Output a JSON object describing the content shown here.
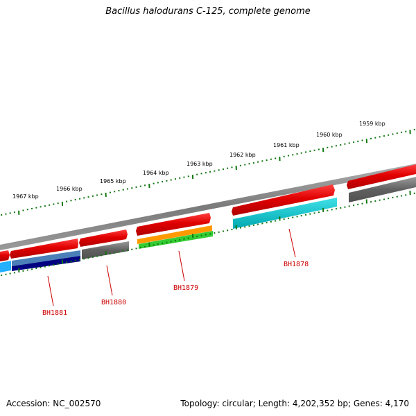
{
  "title": "Bacillus halodurans C-125, complete genome",
  "accession": "Accession: NC_002570",
  "stats": "Topology: circular; Length: 4,202,352 bp; Genes: 4,170",
  "colors": {
    "forward_cds": "#e00000",
    "backbone": "#808080",
    "tick": "#117711",
    "label": "#cc0000",
    "gray_feature": "#606060",
    "steel_blue": "#4682b4",
    "navy": "#000080",
    "light_blue": "#00aaff",
    "orange": "#ff9900",
    "green": "#33cc33",
    "cyan": "#00c8d0"
  },
  "ticks": [
    {
      "label": "1959 kbp"
    },
    {
      "label": "1960 kbp"
    },
    {
      "label": "1961 kbp"
    },
    {
      "label": "1962 kbp"
    },
    {
      "label": "1963 kbp"
    },
    {
      "label": "1964 kbp"
    },
    {
      "label": "1965 kbp"
    },
    {
      "label": "1966 kbp"
    },
    {
      "label": "1967 kbp"
    }
  ],
  "gene_labels": [
    "BH1878",
    "BH1879",
    "BH1880",
    "BH1881"
  ]
}
